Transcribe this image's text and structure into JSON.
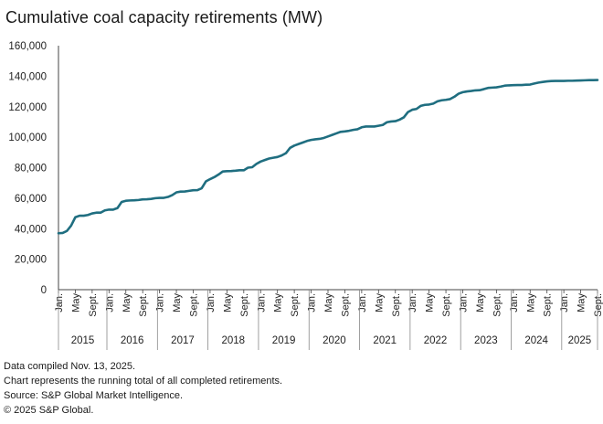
{
  "header": {
    "title": "Cumulative coal capacity retirements (MW)"
  },
  "chart_data": {
    "type": "line",
    "title": "Cumulative coal capacity retirements (MW)",
    "xlabel": "",
    "ylabel": "",
    "ylim": [
      0,
      160000
    ],
    "yticks": [
      0,
      20000,
      40000,
      60000,
      80000,
      100000,
      120000,
      140000,
      160000
    ],
    "ytick_labels": [
      "0",
      "20,000",
      "40,000",
      "60,000",
      "80,000",
      "100,000",
      "120,000",
      "140,000",
      "160,000"
    ],
    "month_labels": [
      "Jan.",
      "May",
      "Sept."
    ],
    "years": [
      "2015",
      "2016",
      "2017",
      "2018",
      "2019",
      "2020",
      "2021",
      "2022",
      "2023",
      "2024",
      "2025"
    ],
    "grid": false,
    "legend": "none",
    "line_color": "#1f6e80",
    "x_start": "2015-01",
    "x_end": "2025-09",
    "series": [
      {
        "values": [
          37000,
          37200,
          38500,
          42000,
          47500,
          48500,
          48500,
          49000,
          50000,
          50500,
          50500,
          52000,
          52500,
          52500,
          53500,
          57500,
          58300,
          58500,
          58600,
          58800,
          59200,
          59300,
          59500,
          60000,
          60200,
          60200,
          60800,
          62000,
          63800,
          64300,
          64400,
          64800,
          65200,
          65300,
          66500,
          71000,
          72500,
          73800,
          75500,
          77500,
          77700,
          77800,
          78000,
          78300,
          78300,
          80000,
          80300,
          82500,
          84000,
          85000,
          86000,
          86500,
          87000,
          88000,
          89500,
          93000,
          94500,
          95500,
          96500,
          97500,
          98200,
          98600,
          98900,
          99500,
          100500,
          101500,
          102500,
          103500,
          103800,
          104200,
          104800,
          105200,
          106500,
          107000,
          107000,
          107000,
          107500,
          108000,
          109800,
          110300,
          110500,
          111500,
          113000,
          116500,
          118000,
          118500,
          120500,
          121200,
          121400,
          122000,
          123500,
          124200,
          124500,
          125000,
          126500,
          128500,
          129500,
          130000,
          130300,
          130700,
          130800,
          131500,
          132300,
          132500,
          132700,
          133200,
          133800,
          134000,
          134100,
          134200,
          134200,
          134400,
          134500,
          135200,
          135800,
          136200,
          136600,
          136800,
          136900,
          136900,
          136900,
          137000,
          137000,
          137100,
          137200,
          137300,
          137400,
          137400,
          137500
        ]
      }
    ]
  },
  "footnotes": [
    "Data compiled Nov. 13, 2025.",
    "Chart represents the running total of all completed retirements.",
    "Source: S&P Global Market Intelligence.",
    "© 2025 S&P Global."
  ]
}
